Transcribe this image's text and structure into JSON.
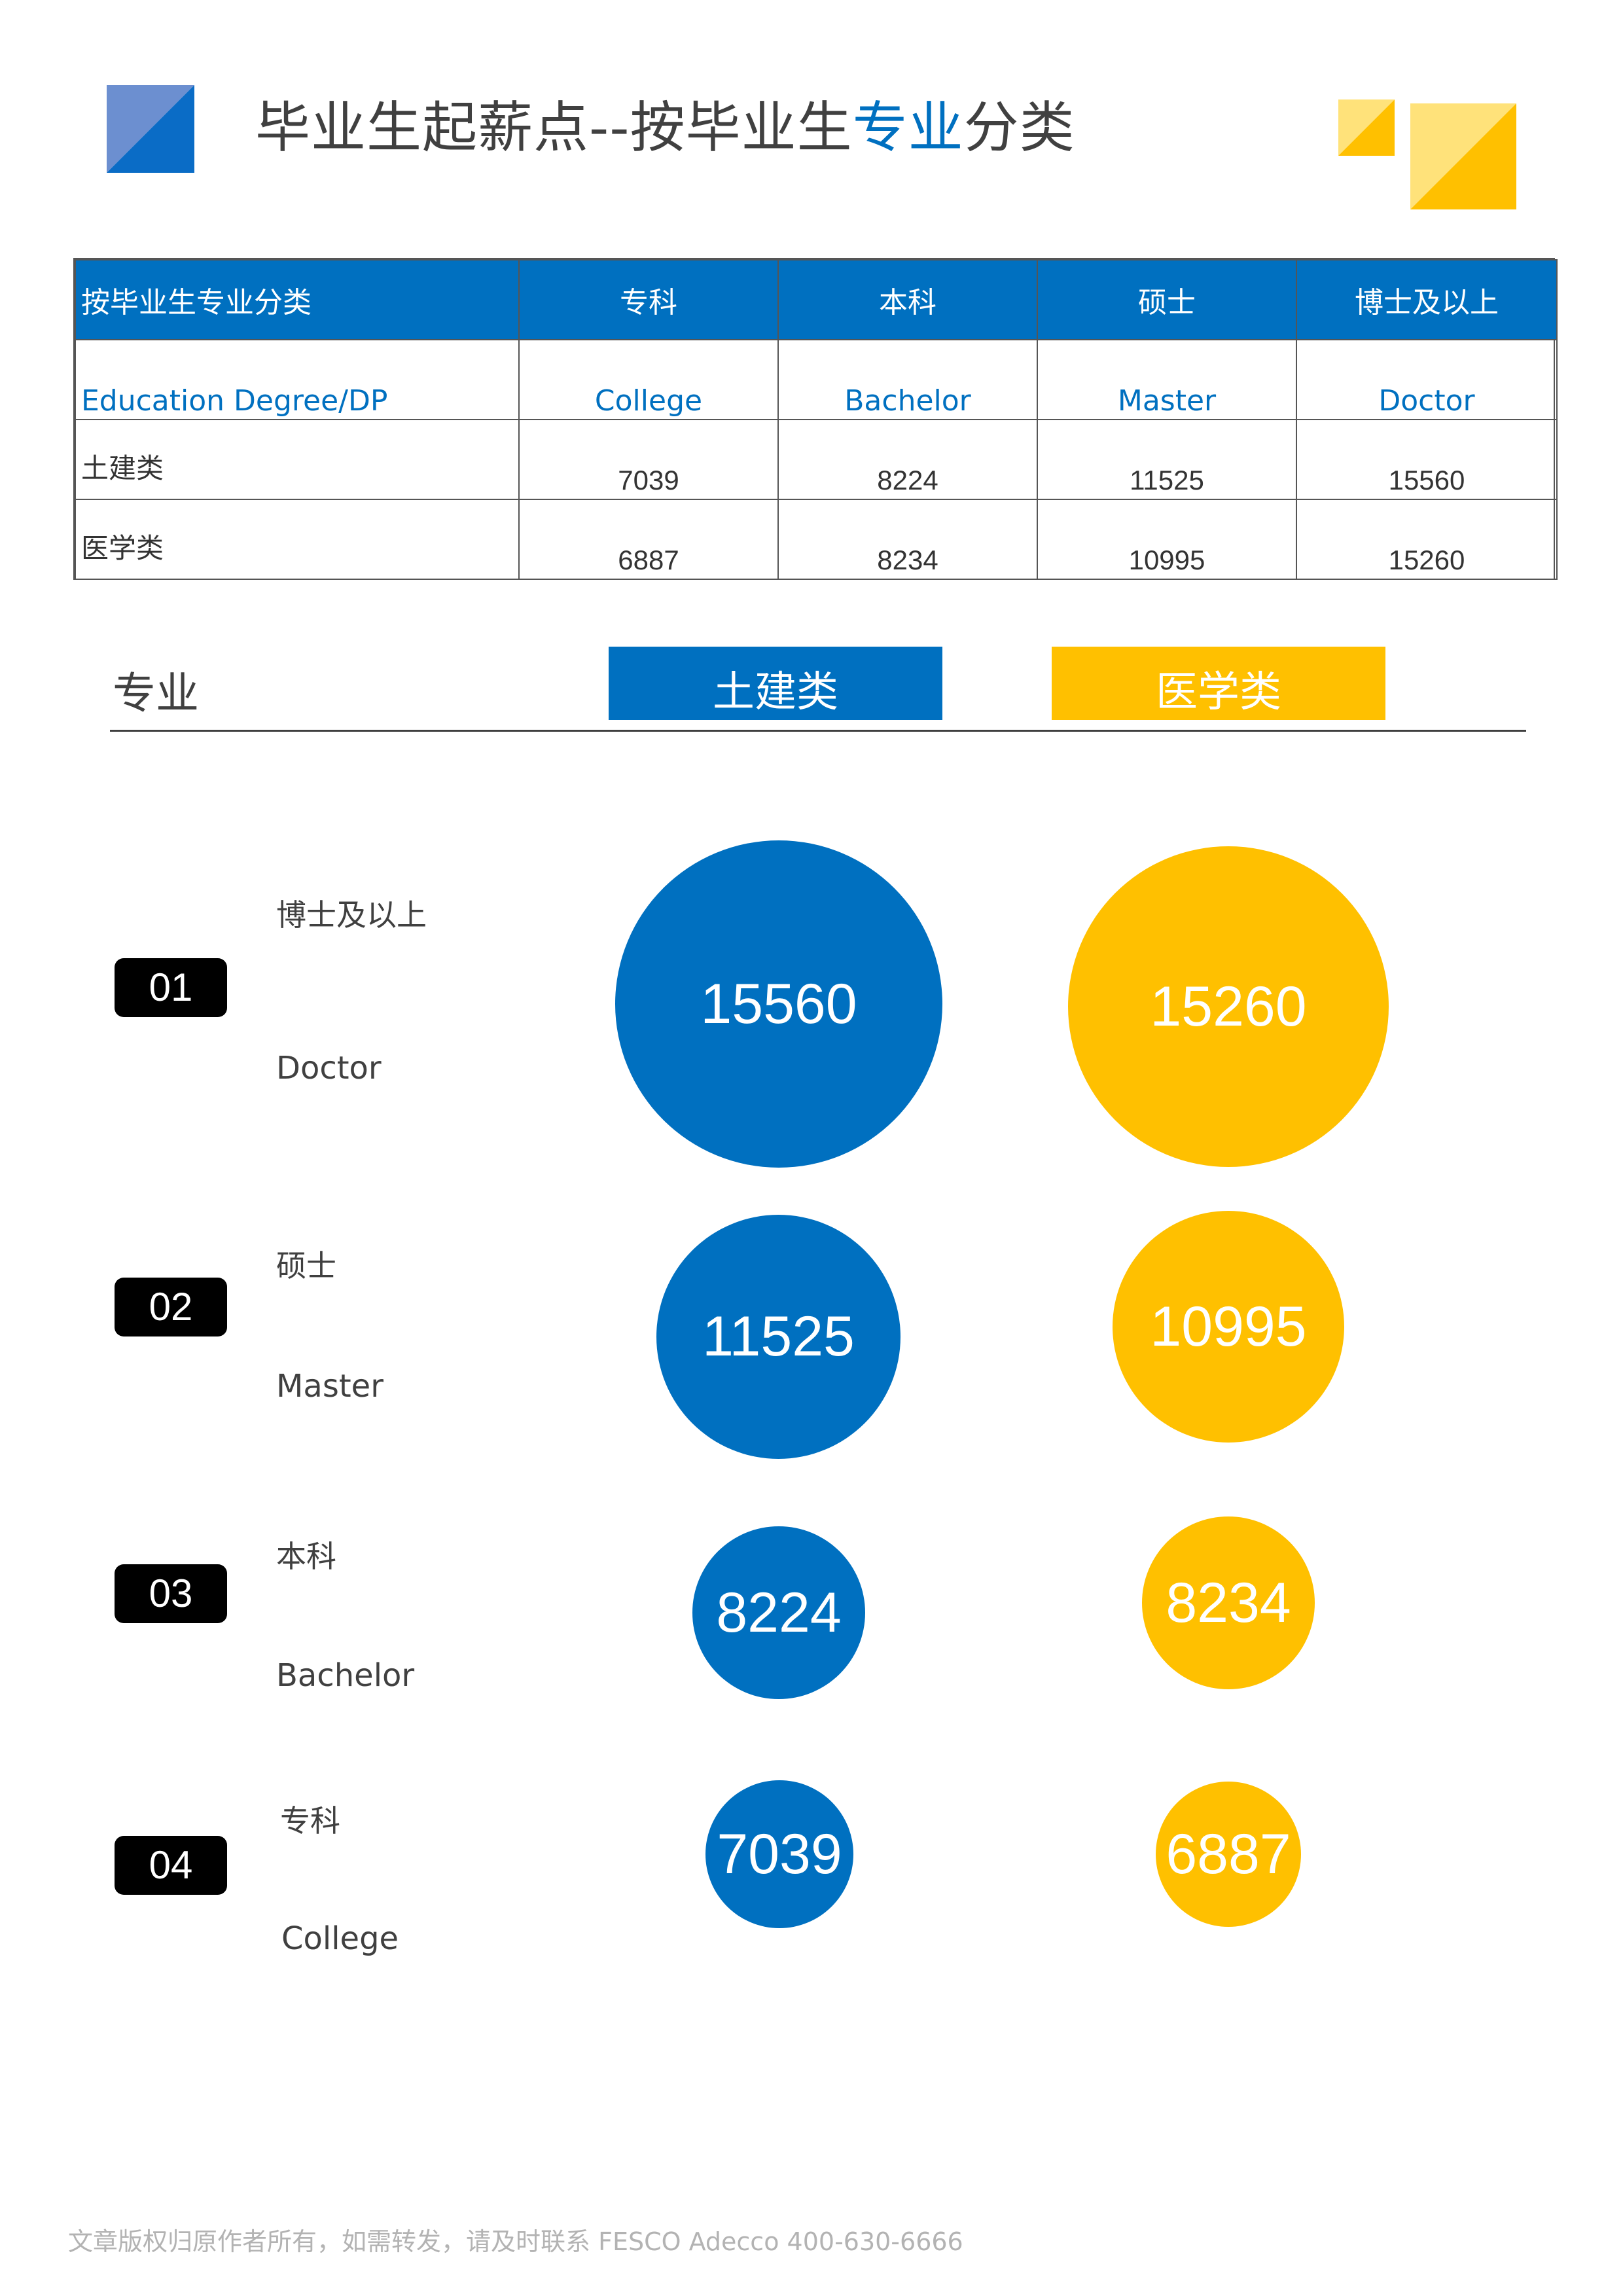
{
  "title": {
    "part1": "毕业生起薪点--按毕业生",
    "accent": "专业",
    "part2": "分类"
  },
  "colors": {
    "blue": "#0070C0",
    "yellow": "#FFC000",
    "light_yellow": "#FFE27A",
    "badge": "#000000"
  },
  "table": {
    "headers": [
      "按毕业生专业分类",
      "专科",
      "本科",
      "硕士",
      "博士及以上"
    ],
    "english_row": [
      "Education  Degree/DP",
      "College",
      "Bachelor",
      "Master",
      "Doctor"
    ],
    "rows": [
      {
        "label": "土建类",
        "values": [
          "7039",
          "8224",
          "11525",
          "15560"
        ]
      },
      {
        "label": "医学类",
        "values": [
          "6887",
          "8234",
          "10995",
          "15260"
        ]
      }
    ]
  },
  "section": {
    "label": "专业",
    "legend": [
      "土建类",
      "医学类"
    ]
  },
  "chart_data": {
    "type": "bubble",
    "series": [
      {
        "name": "土建类",
        "values": [
          15560,
          11525,
          8224,
          7039
        ]
      },
      {
        "name": "医学类",
        "values": [
          15260,
          10995,
          8234,
          6887
        ]
      }
    ],
    "categories": [
      "博士及以上 Doctor",
      "硕士 Master",
      "本科 Bachelor",
      "专科 College"
    ]
  },
  "degree_rows": [
    {
      "num": "01",
      "cn": "博士及以上",
      "en": "Doctor",
      "blue": "15560",
      "yellow": "15260"
    },
    {
      "num": "02",
      "cn": "硕士",
      "en": "Master",
      "blue": "11525",
      "yellow": "10995"
    },
    {
      "num": "03",
      "cn": "本科",
      "en": "Bachelor",
      "blue": "8224",
      "yellow": "8234"
    },
    {
      "num": "04",
      "cn": "专科",
      "en": "College",
      "blue": "7039",
      "yellow": "6887"
    }
  ],
  "footer": "文章版权归原作者所有，如需转发，请及时联系 FESCO Adecco 400-630-6666"
}
